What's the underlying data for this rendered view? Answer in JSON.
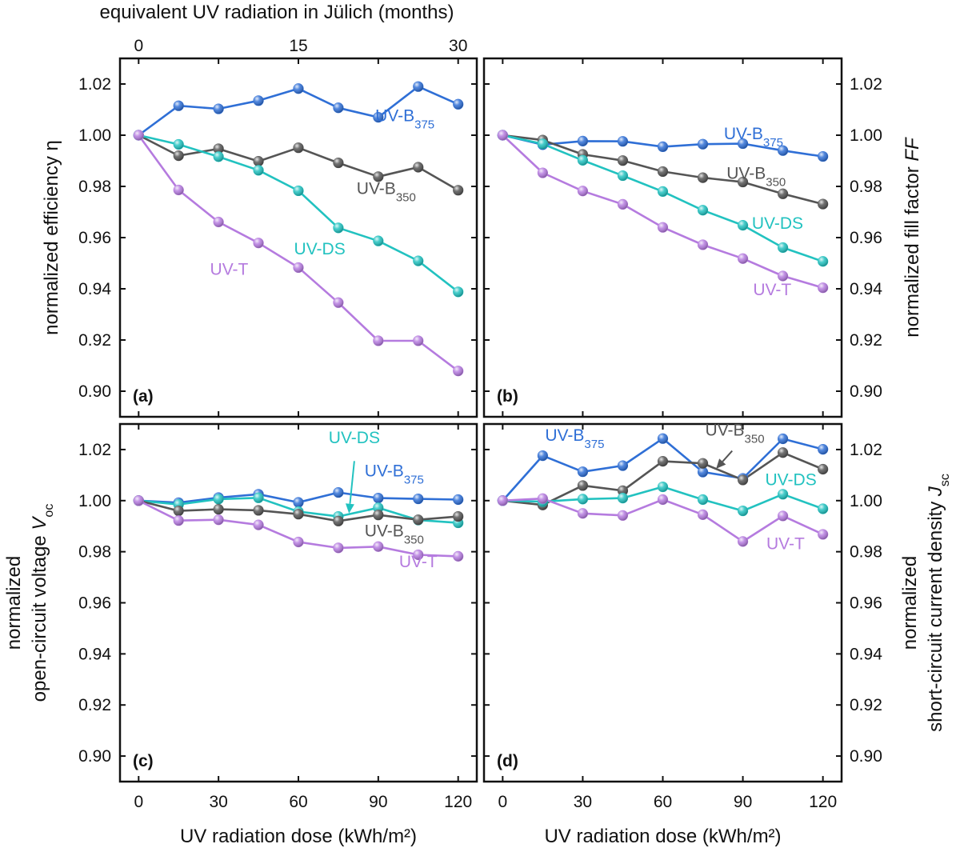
{
  "figure": {
    "top_axis_label": "equivalent UV radiation in Jülich (months)",
    "top_ticks": [
      "0",
      "15",
      "30"
    ],
    "top_tick_positions_kwh": [
      0,
      60,
      120
    ]
  },
  "colors": {
    "UV-B375": "#2f6fd6",
    "UV-B350": "#555555",
    "UV-DS": "#22c2c0",
    "UV-T": "#b57bdf"
  },
  "chart_data": [
    {
      "panel": "(a)",
      "type": "line",
      "xlabel": "",
      "ylabel": "normalized efficiency η",
      "xlim": [
        -7,
        127
      ],
      "ylim": [
        0.89,
        1.03
      ],
      "xticks": [
        0,
        30,
        60,
        90,
        120
      ],
      "yticks": [
        0.9,
        0.92,
        0.94,
        0.96,
        0.98,
        1.0,
        1.02
      ],
      "yaxis_side": "left",
      "x": [
        0,
        15,
        30,
        45,
        60,
        75,
        90,
        105,
        120
      ],
      "series": [
        {
          "name": "UV-B375",
          "values": [
            1.0,
            1.0115,
            1.0103,
            1.0135,
            1.0182,
            1.0107,
            1.007,
            1.019,
            1.0121
          ]
        },
        {
          "name": "UV-B350",
          "values": [
            1.0,
            0.992,
            0.9947,
            0.9898,
            0.9951,
            0.9892,
            0.9838,
            0.9875,
            0.9785
          ]
        },
        {
          "name": "UV-DS",
          "values": [
            1.0,
            0.9964,
            0.9916,
            0.9863,
            0.9783,
            0.9638,
            0.9587,
            0.9509,
            0.9388
          ]
        },
        {
          "name": "UV-T",
          "values": [
            1.0,
            0.9786,
            0.9661,
            0.9579,
            0.9483,
            0.9346,
            0.9197,
            0.9197,
            0.9079
          ]
        }
      ],
      "annotations": [
        {
          "series": "UV-B375",
          "text": "UV-B",
          "sub": "375",
          "x": 100,
          "y": 1.0055
        },
        {
          "series": "UV-B350",
          "text": "UV-B",
          "sub": "350",
          "x": 93,
          "y": 0.977
        },
        {
          "series": "UV-DS",
          "text": "UV-DS",
          "x": 68,
          "y": 0.9535
        },
        {
          "series": "UV-T",
          "text": "UV-T",
          "x": 34,
          "y": 0.9455
        }
      ]
    },
    {
      "panel": "(b)",
      "type": "line",
      "xlabel": "",
      "ylabel": "normalized fill factor FF",
      "ylabel_plain": "normalized fill factor ",
      "ylabel_italic": "FF",
      "xlim": [
        -7,
        127
      ],
      "ylim": [
        0.89,
        1.03
      ],
      "xticks": [
        0,
        30,
        60,
        90,
        120
      ],
      "yticks": [
        0.9,
        0.92,
        0.94,
        0.96,
        0.98,
        1.0,
        1.02
      ],
      "yaxis_side": "right",
      "x": [
        0,
        15,
        30,
        45,
        60,
        75,
        90,
        105,
        120
      ],
      "series": [
        {
          "name": "UV-B375",
          "values": [
            1.0,
            0.9963,
            0.9977,
            0.9976,
            0.9955,
            0.9965,
            0.9967,
            0.994,
            0.9917
          ]
        },
        {
          "name": "UV-B350",
          "values": [
            1.0,
            0.9981,
            0.9925,
            0.9901,
            0.9858,
            0.9834,
            0.9817,
            0.9771,
            0.9731
          ]
        },
        {
          "name": "UV-DS",
          "values": [
            1.0,
            0.9966,
            0.9902,
            0.9842,
            0.978,
            0.9707,
            0.9648,
            0.9561,
            0.9507
          ]
        },
        {
          "name": "UV-T",
          "values": [
            1.0,
            0.9853,
            0.9782,
            0.973,
            0.964,
            0.9572,
            0.9518,
            0.945,
            0.9404
          ]
        }
      ],
      "annotations": [
        {
          "series": "UV-B375",
          "text": "UV-B",
          "sub": "375",
          "x": 94,
          "y": 0.9985
        },
        {
          "series": "UV-B350",
          "text": "UV-B",
          "sub": "350",
          "x": 95,
          "y": 0.983
        },
        {
          "series": "UV-DS",
          "text": "UV-DS",
          "x": 103,
          "y": 0.9635
        },
        {
          "series": "UV-T",
          "text": "UV-T",
          "x": 101,
          "y": 0.9375
        }
      ]
    },
    {
      "panel": "(c)",
      "type": "line",
      "xlabel": "UV radiation dose (kWh/m²)",
      "ylabel": "normalized open-circuit voltage Voc",
      "ylabel_line1": "normalized",
      "ylabel_line2": "open-circuit voltage ",
      "ylabel_var": "V",
      "ylabel_sub": "oc",
      "xlim": [
        -7,
        127
      ],
      "ylim": [
        0.89,
        1.03
      ],
      "xticks": [
        0,
        30,
        60,
        90,
        120
      ],
      "yticks": [
        0.9,
        0.92,
        0.94,
        0.96,
        0.98,
        1.0,
        1.02
      ],
      "yaxis_side": "left",
      "x": [
        0,
        15,
        30,
        45,
        60,
        75,
        90,
        105,
        120
      ],
      "series": [
        {
          "name": "UV-B375",
          "values": [
            1.0,
            0.9992,
            1.0012,
            1.0025,
            0.9993,
            1.0032,
            1.001,
            1.0007,
            1.0004
          ]
        },
        {
          "name": "UV-DS",
          "values": [
            1.0,
            0.9985,
            1.0006,
            1.0011,
            0.9957,
            0.9938,
            0.9972,
            0.9924,
            0.9913
          ]
        },
        {
          "name": "UV-B350",
          "values": [
            1.0,
            0.996,
            0.9966,
            0.9962,
            0.9947,
            0.992,
            0.9944,
            0.9925,
            0.9938
          ]
        },
        {
          "name": "UV-T",
          "values": [
            1.0,
            0.9922,
            0.9925,
            0.9905,
            0.9838,
            0.9815,
            0.982,
            0.9788,
            0.9782
          ]
        }
      ],
      "annotations": [
        {
          "series": "UV-DS",
          "text": "UV-DS",
          "x": 81,
          "y": 1.0225
        },
        {
          "series": "UV-B375",
          "text": "UV-B",
          "sub": "375",
          "x": 96,
          "y": 1.0095
        },
        {
          "series": "UV-B350",
          "text": "UV-B",
          "sub": "350",
          "x": 96,
          "y": 0.986
        },
        {
          "series": "UV-T",
          "text": "UV-T",
          "x": 105,
          "y": 0.974
        }
      ],
      "arrows": [
        {
          "color_of": "UV-DS",
          "from": [
            81,
            1.0155
          ],
          "to": [
            79,
            0.995
          ]
        }
      ]
    },
    {
      "panel": "(d)",
      "type": "line",
      "xlabel": "UV radiation dose (kWh/m²)",
      "ylabel": "normalized short-circuit current density Jsc",
      "ylabel_line1": "normalized",
      "ylabel_line2": "short-circuit current density ",
      "ylabel_var": "J",
      "ylabel_sub": "sc",
      "xlim": [
        -7,
        127
      ],
      "ylim": [
        0.89,
        1.03
      ],
      "xticks": [
        0,
        30,
        60,
        90,
        120
      ],
      "yticks": [
        0.9,
        0.92,
        0.94,
        0.96,
        0.98,
        1.0,
        1.02
      ],
      "yaxis_side": "right",
      "x": [
        0,
        15,
        30,
        45,
        60,
        75,
        90,
        105,
        120
      ],
      "series": [
        {
          "name": "UV-B375",
          "values": [
            1.0,
            1.0176,
            1.0113,
            1.0137,
            1.0243,
            1.0112,
            1.0087,
            1.0242,
            1.0201
          ]
        },
        {
          "name": "UV-B350",
          "values": [
            1.0,
            0.9983,
            1.0059,
            1.0039,
            1.0154,
            1.0146,
            1.0081,
            1.0188,
            1.0123
          ]
        },
        {
          "name": "UV-DS",
          "values": [
            1.0,
            0.9996,
            1.0006,
            1.001,
            1.0054,
            1.0004,
            0.996,
            1.0025,
            0.9968
          ]
        },
        {
          "name": "UV-T",
          "values": [
            1.0,
            1.0008,
            0.995,
            0.9942,
            1.0004,
            0.9945,
            0.984,
            0.994,
            0.9868
          ]
        }
      ],
      "annotations": [
        {
          "series": "UV-B375",
          "text": "UV-B",
          "sub": "375",
          "x": 27,
          "y": 1.0235
        },
        {
          "series": "UV-B350",
          "text": "UV-B",
          "sub": "350",
          "x": 87,
          "y": 1.0255
        },
        {
          "series": "UV-DS",
          "text": "UV-DS",
          "x": 108,
          "y": 1.006
        },
        {
          "series": "UV-T",
          "text": "UV-T",
          "x": 106,
          "y": 0.981
        }
      ],
      "arrows": [
        {
          "color_of": "UV-B350",
          "from": [
            86,
            1.0195
          ],
          "to": [
            80,
            1.0125
          ]
        }
      ]
    }
  ]
}
